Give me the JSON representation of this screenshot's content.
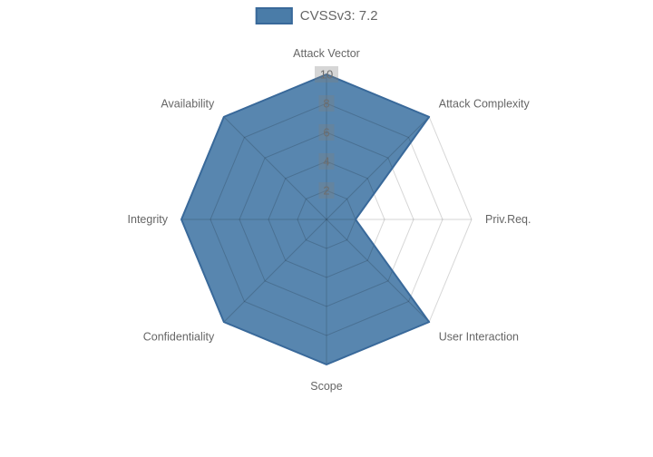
{
  "chart_data": {
    "type": "radar",
    "title": "",
    "categories": [
      "Attack Vector",
      "Attack Complexity",
      "Priv.Req.",
      "User Interaction",
      "Scope",
      "Confidentiality",
      "Integrity",
      "Availability"
    ],
    "series": [
      {
        "name": "CVSSv3: 7.2",
        "values": [
          10,
          10,
          2,
          10,
          10,
          10,
          10,
          10
        ]
      }
    ],
    "rlim": [
      0,
      10
    ],
    "ticks": [
      2,
      4,
      6,
      8,
      10
    ],
    "grid": true,
    "legend_position": "top",
    "colors": {
      "fill": "#4A7CA8",
      "fill_opacity": 0.92,
      "stroke": "#39699A",
      "grid": "rgba(0,0,0,0.16)",
      "label": "#666666",
      "tick": "#6e6e6e",
      "tick_backdrop": "rgba(128,128,128,0.32)"
    }
  }
}
